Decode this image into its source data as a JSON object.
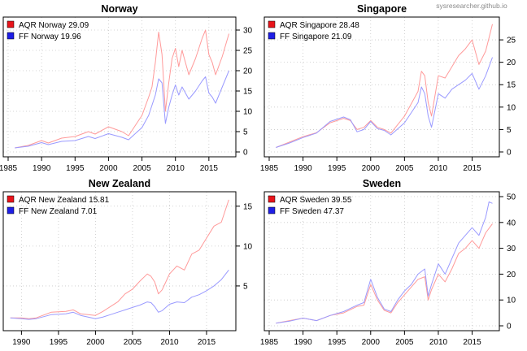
{
  "watermark": "sysresearcher.github.io",
  "colors": {
    "aqr": "#ff9a9a",
    "ff": "#9a9aff",
    "aqr_key": "#e8141b",
    "ff_key": "#1e1ee6",
    "grid": "#c8c8c8"
  },
  "chart_data": [
    {
      "type": "line",
      "title": "Norway",
      "xlim": [
        1985,
        2018.3
      ],
      "ylim": [
        0,
        32
      ],
      "x_ticks": [
        1985,
        1990,
        1995,
        2000,
        2005,
        2010,
        2015
      ],
      "x_tick_labels": [
        "1985",
        "1990",
        "1995",
        "2000",
        "2005",
        "2010",
        "2015"
      ],
      "y_ticks": [
        0,
        5,
        10,
        15,
        20,
        25,
        30
      ],
      "legend_position": "top-left",
      "series": [
        {
          "name": "AQR Norway 29.09",
          "color": "#ff9a9a",
          "x": [
            1986.0,
            1988.0,
            1990.0,
            1991.0,
            1993.0,
            1995.0,
            1997.0,
            1998.0,
            2000.0,
            2002.0,
            2003.0,
            2004.0,
            2005.0,
            2006.0,
            2006.5,
            2007.0,
            2007.5,
            2008.0,
            2008.5,
            2009.0,
            2009.5,
            2010.0,
            2010.5,
            2011.0,
            2012.0,
            2013.0,
            2014.0,
            2014.5,
            2015.0,
            2015.5,
            2016.0,
            2017.0,
            2018.0
          ],
          "y": [
            1.0,
            1.6,
            2.8,
            2.2,
            3.4,
            3.8,
            5.0,
            4.4,
            6.2,
            5.0,
            4.0,
            6.5,
            9.0,
            13.5,
            16.0,
            22.0,
            29.5,
            24.0,
            10.0,
            17.0,
            23.0,
            25.5,
            21.0,
            25.0,
            19.0,
            23.0,
            28.0,
            30.0,
            24.0,
            22.0,
            19.0,
            23.5,
            29.1
          ]
        },
        {
          "name": "FF Norway 19.96",
          "color": "#9a9aff",
          "x": [
            1986.0,
            1988.0,
            1990.0,
            1991.0,
            1993.0,
            1995.0,
            1997.0,
            1998.0,
            2000.0,
            2002.0,
            2003.0,
            2004.0,
            2005.0,
            2006.0,
            2006.5,
            2007.0,
            2007.5,
            2008.0,
            2008.5,
            2009.0,
            2009.5,
            2010.0,
            2010.5,
            2011.0,
            2012.0,
            2013.0,
            2014.0,
            2014.5,
            2015.0,
            2015.5,
            2016.0,
            2017.0,
            2018.0
          ],
          "y": [
            1.0,
            1.4,
            2.3,
            1.8,
            2.6,
            2.8,
            3.8,
            3.3,
            4.5,
            3.6,
            3.0,
            4.5,
            6.0,
            9.0,
            11.5,
            14.0,
            18.0,
            17.0,
            7.0,
            11.0,
            14.0,
            16.5,
            14.0,
            16.0,
            13.0,
            15.0,
            17.5,
            18.5,
            14.5,
            13.5,
            12.0,
            16.0,
            20.0
          ]
        }
      ]
    },
    {
      "type": "line",
      "title": "Singapore",
      "xlim": [
        1985,
        2018.3
      ],
      "ylim": [
        0,
        29
      ],
      "x_ticks": [
        1985,
        1990,
        1995,
        2000,
        2005,
        2010,
        2015
      ],
      "x_tick_labels": [
        "1985",
        "1990",
        "1995",
        "2000",
        "2005",
        "2010",
        "2015"
      ],
      "y_ticks": [
        0,
        5,
        10,
        15,
        20,
        25
      ],
      "legend_position": "top-left",
      "series": [
        {
          "name": "AQR Singapore 28.48",
          "color": "#ff9a9a",
          "x": [
            1986.0,
            1988.0,
            1990.0,
            1992.0,
            1994.0,
            1996.0,
            1997.0,
            1998.0,
            1999.0,
            2000.0,
            2001.0,
            2002.0,
            2003.0,
            2005.0,
            2007.0,
            2007.5,
            2008.0,
            2008.5,
            2009.0,
            2010.0,
            2011.0,
            2012.0,
            2013.0,
            2014.0,
            2015.0,
            2016.0,
            2017.0,
            2018.0
          ],
          "y": [
            1.0,
            2.2,
            3.4,
            4.3,
            6.5,
            7.5,
            7.0,
            5.0,
            5.5,
            7.0,
            5.5,
            5.0,
            4.2,
            8.0,
            13.5,
            18.0,
            17.0,
            11.0,
            8.0,
            17.0,
            16.5,
            19.0,
            21.5,
            23.0,
            25.0,
            19.5,
            22.5,
            28.5
          ]
        },
        {
          "name": "FF Singapore 21.09",
          "color": "#9a9aff",
          "x": [
            1986.0,
            1988.0,
            1990.0,
            1992.0,
            1994.0,
            1996.0,
            1997.0,
            1998.0,
            1999.0,
            2000.0,
            2001.0,
            2002.0,
            2003.0,
            2005.0,
            2007.0,
            2007.5,
            2008.0,
            2008.5,
            2009.0,
            2010.0,
            2011.0,
            2012.0,
            2013.0,
            2014.0,
            2015.0,
            2016.0,
            2017.0,
            2018.0
          ],
          "y": [
            1.0,
            2.0,
            3.2,
            4.2,
            6.8,
            7.8,
            7.2,
            4.5,
            5.0,
            6.8,
            5.2,
            4.8,
            3.8,
            6.5,
            11.0,
            14.5,
            13.0,
            8.0,
            5.5,
            13.0,
            12.0,
            14.0,
            15.0,
            16.0,
            17.5,
            14.0,
            17.0,
            21.1
          ]
        }
      ]
    },
    {
      "type": "line",
      "title": "New Zealand",
      "xlim": [
        1988.2,
        2018.3
      ],
      "ylim": [
        0,
        16.2
      ],
      "x_ticks": [
        1990,
        1995,
        2000,
        2005,
        2010,
        2015
      ],
      "x_tick_labels": [
        "1990",
        "1995",
        "2000",
        "2005",
        "2010",
        "2015"
      ],
      "y_ticks": [
        5,
        10,
        15
      ],
      "legend_position": "top-left",
      "series": [
        {
          "name": "AQR New Zealand 15.81",
          "color": "#ff9a9a",
          "x": [
            1988.5,
            1990.0,
            1991.0,
            1992.0,
            1994.0,
            1996.0,
            1997.0,
            1998.0,
            2000.0,
            2001.0,
            2002.0,
            2003.0,
            2004.0,
            2005.0,
            2006.0,
            2007.0,
            2007.5,
            2008.0,
            2008.5,
            2009.0,
            2009.5,
            2010.0,
            2011.0,
            2012.0,
            2013.0,
            2014.0,
            2015.0,
            2016.0,
            2017.0,
            2018.0
          ],
          "y": [
            1.0,
            1.0,
            0.9,
            1.0,
            1.7,
            1.8,
            2.0,
            1.5,
            1.3,
            1.8,
            2.4,
            3.0,
            4.0,
            4.6,
            5.6,
            6.5,
            6.2,
            5.5,
            4.0,
            4.5,
            5.5,
            6.5,
            7.5,
            7.0,
            9.0,
            9.5,
            11.0,
            12.5,
            13.0,
            15.8
          ]
        },
        {
          "name": "FF New Zealand  7.01",
          "color": "#9a9aff",
          "x": [
            1988.5,
            1990.0,
            1991.0,
            1992.0,
            1994.0,
            1996.0,
            1997.0,
            1998.0,
            2000.0,
            2001.0,
            2002.0,
            2003.0,
            2004.0,
            2005.0,
            2006.0,
            2007.0,
            2007.5,
            2008.0,
            2008.5,
            2009.0,
            2009.5,
            2010.0,
            2011.0,
            2012.0,
            2013.0,
            2014.0,
            2015.0,
            2016.0,
            2017.0,
            2018.0
          ],
          "y": [
            1.0,
            0.9,
            0.8,
            0.9,
            1.4,
            1.5,
            1.7,
            1.3,
            0.9,
            1.1,
            1.4,
            1.7,
            2.0,
            2.3,
            2.6,
            3.0,
            2.9,
            2.4,
            1.7,
            1.9,
            2.3,
            2.7,
            3.0,
            2.9,
            3.6,
            3.9,
            4.4,
            5.0,
            5.8,
            7.0
          ]
        }
      ]
    },
    {
      "type": "line",
      "title": "Sweden",
      "xlim": [
        1985,
        2018.3
      ],
      "ylim": [
        0,
        50
      ],
      "x_ticks": [
        1985,
        1990,
        1995,
        2000,
        2005,
        2010,
        2015
      ],
      "x_tick_labels": [
        "1985",
        "1990",
        "1995",
        "2000",
        "2005",
        "2010",
        "2015"
      ],
      "y_ticks": [
        0,
        10,
        20,
        30,
        40,
        50
      ],
      "legend_position": "top-left",
      "series": [
        {
          "name": "AQR Sweden 39.55",
          "color": "#ff9a9a",
          "x": [
            1986.0,
            1988.0,
            1990.0,
            1992.0,
            1994.0,
            1996.0,
            1998.0,
            1999.0,
            2000.0,
            2001.0,
            2002.0,
            2003.0,
            2004.0,
            2005.0,
            2006.0,
            2007.0,
            2008.0,
            2008.5,
            2009.0,
            2010.0,
            2011.0,
            2012.0,
            2013.0,
            2014.0,
            2015.0,
            2016.0,
            2017.0,
            2018.0
          ],
          "y": [
            1.0,
            2.0,
            3.0,
            2.0,
            4.0,
            5.0,
            7.5,
            8.0,
            16.0,
            10.0,
            6.0,
            5.0,
            9.0,
            12.0,
            15.0,
            18.0,
            19.0,
            10.0,
            14.0,
            20.0,
            17.0,
            22.0,
            28.0,
            30.0,
            33.0,
            30.0,
            36.0,
            39.5
          ]
        },
        {
          "name": "FF Sweden 47.37",
          "color": "#9a9aff",
          "x": [
            1986.0,
            1988.0,
            1990.0,
            1992.0,
            1994.0,
            1996.0,
            1998.0,
            1999.0,
            2000.0,
            2001.0,
            2002.0,
            2003.0,
            2004.0,
            2005.0,
            2006.0,
            2007.0,
            2008.0,
            2008.5,
            2009.0,
            2010.0,
            2011.0,
            2012.0,
            2013.0,
            2014.0,
            2015.0,
            2016.0,
            2017.0,
            2017.5,
            2018.0
          ],
          "y": [
            1.0,
            1.8,
            3.0,
            2.0,
            4.0,
            5.5,
            8.0,
            9.0,
            18.0,
            11.0,
            6.5,
            5.5,
            10.0,
            13.5,
            16.0,
            20.0,
            22.0,
            11.5,
            16.0,
            24.0,
            20.0,
            26.0,
            32.0,
            35.0,
            38.0,
            35.0,
            42.0,
            48.0,
            47.4
          ]
        }
      ]
    }
  ]
}
